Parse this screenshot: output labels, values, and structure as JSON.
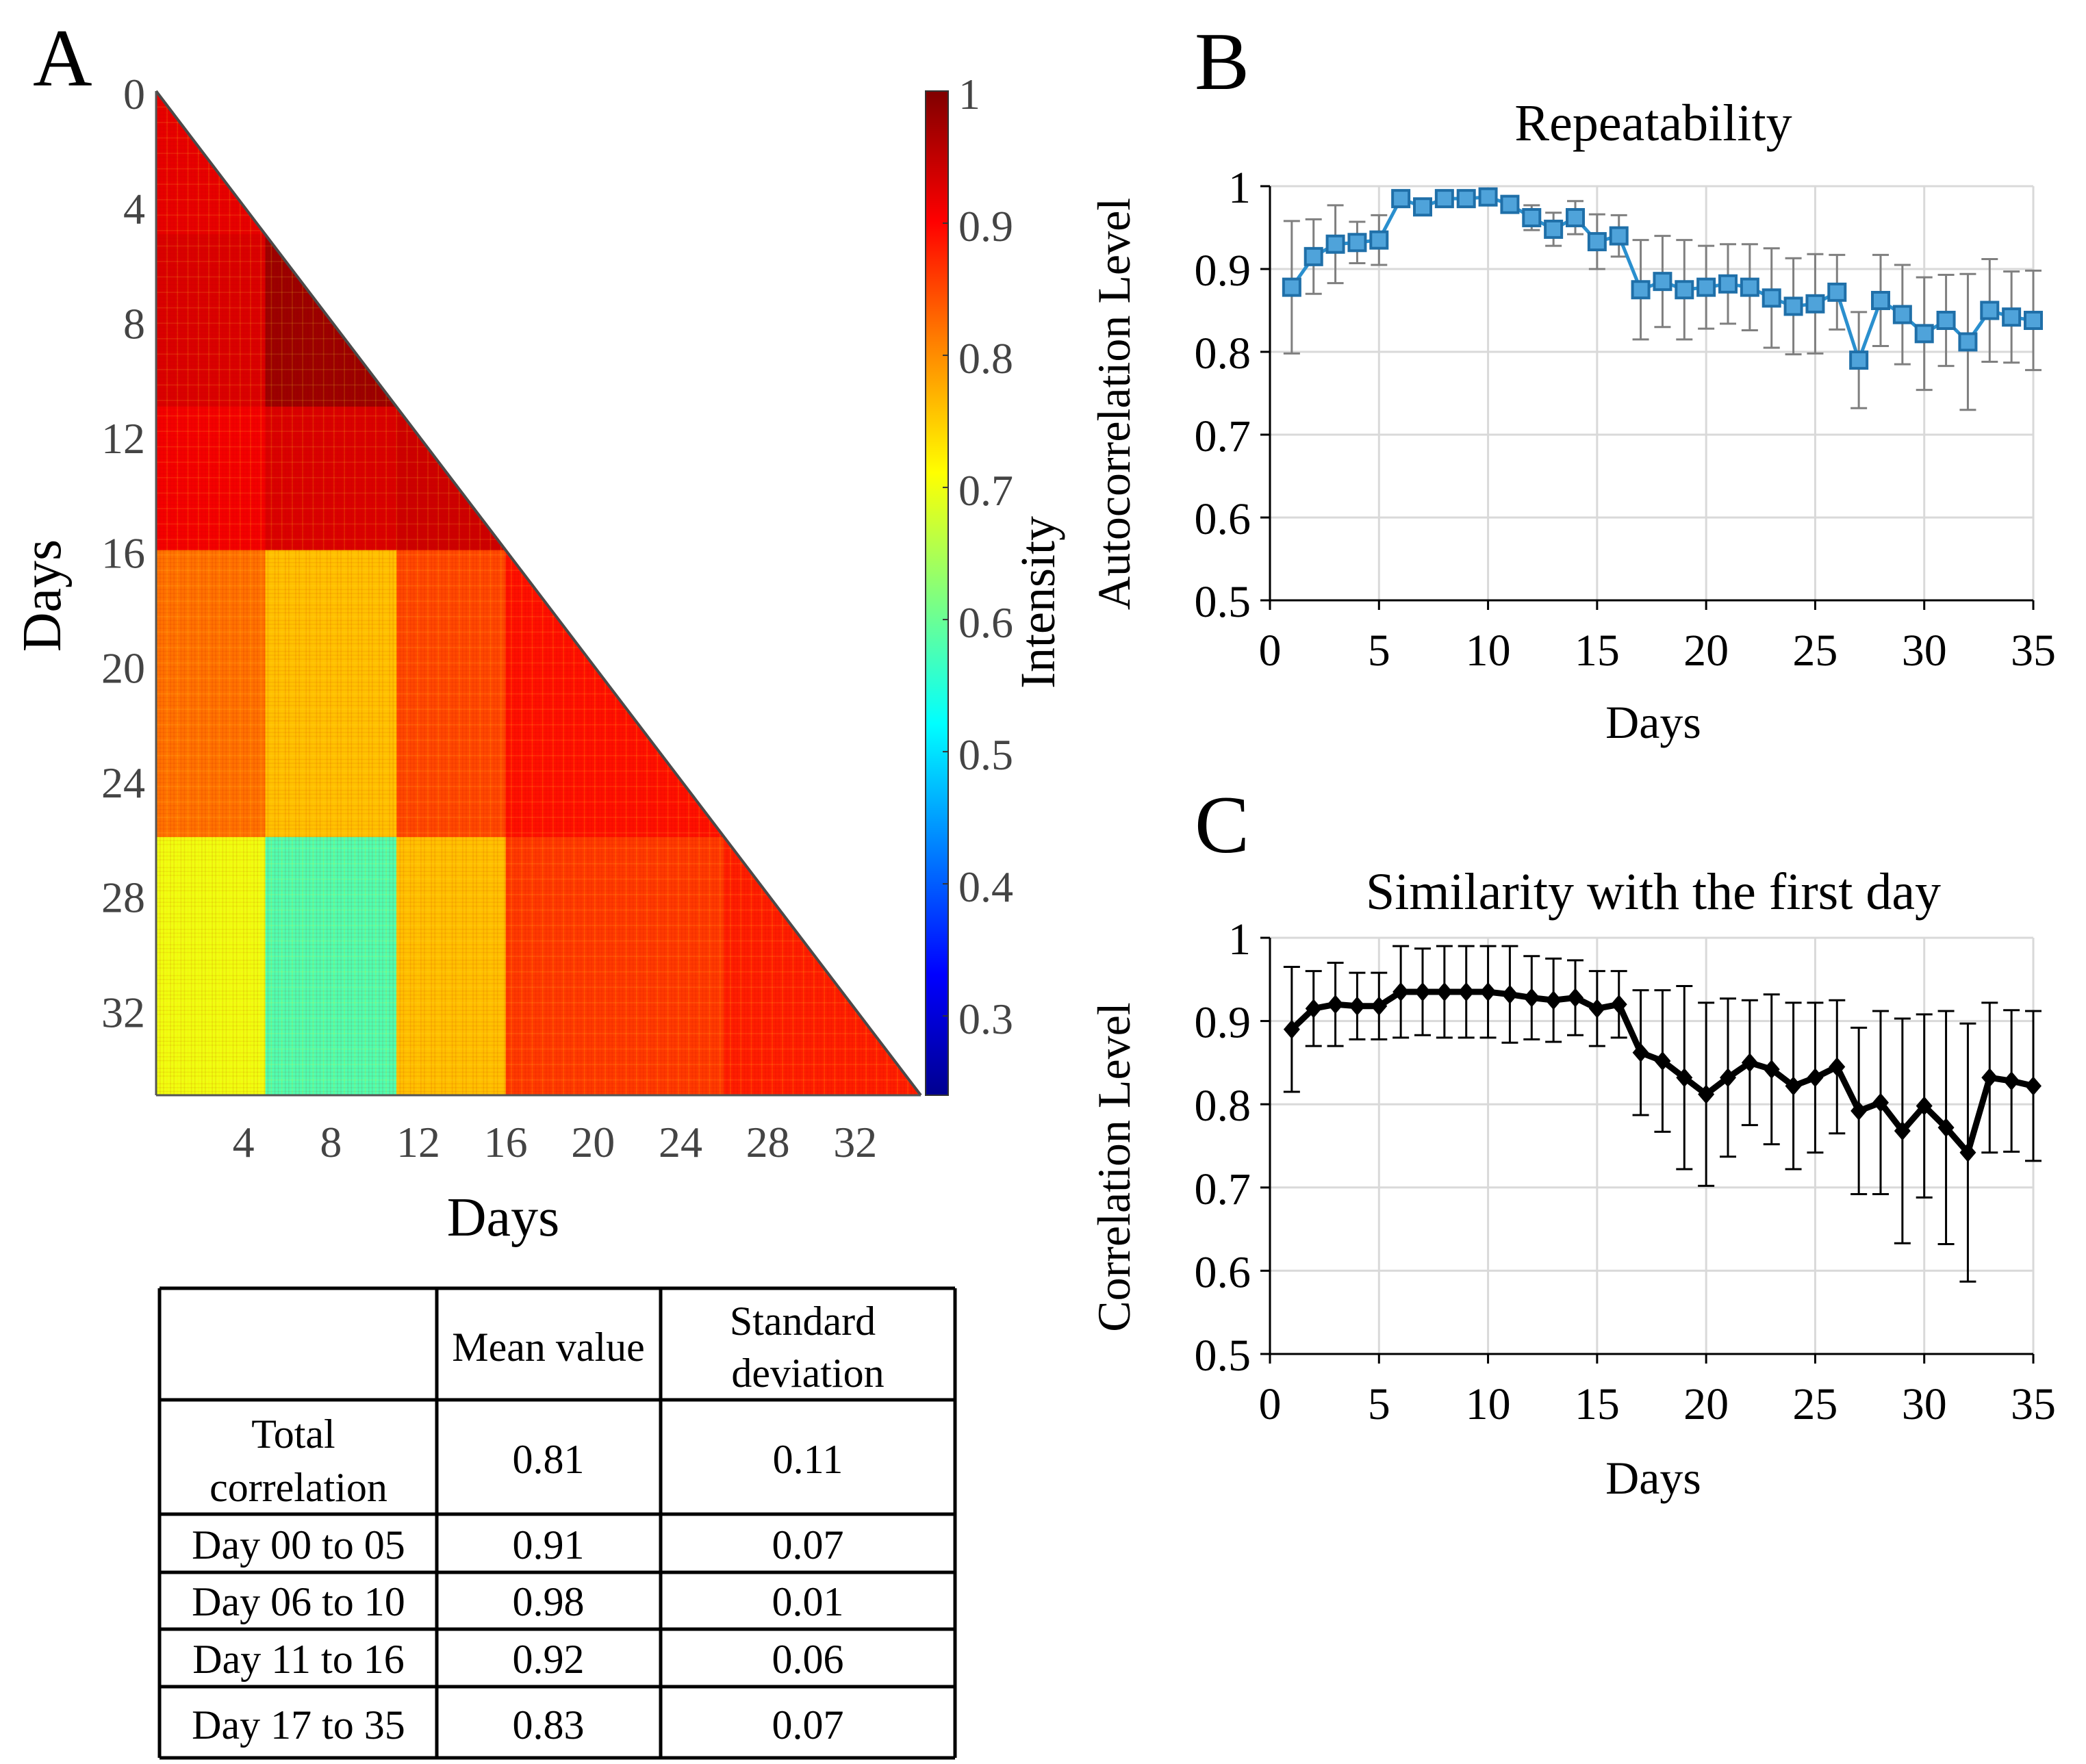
{
  "panels": {
    "A": {
      "letter": "A"
    },
    "B": {
      "letter": "B"
    },
    "C": {
      "letter": "C"
    }
  },
  "chart_data": [
    {
      "id": "A",
      "type": "heatmap",
      "title": "",
      "xlabel": "Days",
      "ylabel": "Days",
      "xticks": [
        "4",
        "8",
        "12",
        "16",
        "20",
        "24",
        "28",
        "32"
      ],
      "yticks": [
        "0",
        "4",
        "8",
        "12",
        "16",
        "20",
        "24",
        "28",
        "32"
      ],
      "xlim": [
        0,
        35
      ],
      "ylim": [
        0,
        35
      ],
      "shape": "lower-triangle",
      "colorbar": {
        "label": "Intensity",
        "ticks": [
          "1",
          "0.9",
          "0.8",
          "0.7",
          "0.6",
          "0.5",
          "0.4",
          "0.3"
        ],
        "range": [
          0.24,
          1.0
        ],
        "colormap": [
          "#00008f",
          "#0000ff",
          "#00ffff",
          "#ffff00",
          "#ff8000",
          "#ff0000",
          "#800000"
        ]
      },
      "blocks": [
        {
          "rows": [
            0,
            5
          ],
          "cols": [
            0,
            5
          ],
          "value": 0.92
        },
        {
          "rows": [
            5,
            11
          ],
          "cols": [
            0,
            5
          ],
          "value": 0.93
        },
        {
          "rows": [
            5,
            11
          ],
          "cols": [
            5,
            11
          ],
          "value": 0.98
        },
        {
          "rows": [
            11,
            16
          ],
          "cols": [
            0,
            5
          ],
          "value": 0.91
        },
        {
          "rows": [
            11,
            16
          ],
          "cols": [
            5,
            11
          ],
          "value": 0.93
        },
        {
          "rows": [
            11,
            16
          ],
          "cols": [
            11,
            16
          ],
          "value": 0.94
        },
        {
          "rows": [
            16,
            26
          ],
          "cols": [
            0,
            5
          ],
          "value": 0.82
        },
        {
          "rows": [
            16,
            26
          ],
          "cols": [
            5,
            11
          ],
          "value": 0.76
        },
        {
          "rows": [
            16,
            26
          ],
          "cols": [
            11,
            16
          ],
          "value": 0.85
        },
        {
          "rows": [
            16,
            26
          ],
          "cols": [
            16,
            26
          ],
          "value": 0.89
        },
        {
          "rows": [
            26,
            35
          ],
          "cols": [
            0,
            5
          ],
          "value": 0.7
        },
        {
          "rows": [
            26,
            35
          ],
          "cols": [
            5,
            11
          ],
          "value": 0.58
        },
        {
          "rows": [
            26,
            35
          ],
          "cols": [
            11,
            16
          ],
          "value": 0.76
        },
        {
          "rows": [
            26,
            35
          ],
          "cols": [
            16,
            26
          ],
          "value": 0.86
        },
        {
          "rows": [
            26,
            35
          ],
          "cols": [
            26,
            35
          ],
          "value": 0.88
        }
      ]
    },
    {
      "id": "B",
      "type": "line",
      "title": "Repeatability",
      "xlabel": "Days",
      "ylabel": "Autocorrelation Level",
      "xlim": [
        0,
        35
      ],
      "ylim": [
        0.5,
        1
      ],
      "xticks": [
        "0",
        "5",
        "10",
        "15",
        "20",
        "25",
        "30",
        "35"
      ],
      "yticks": [
        "0.5",
        "0.6",
        "0.7",
        "0.8",
        "0.9",
        "1"
      ],
      "grid": true,
      "color": "#2a8fce",
      "marker": "square",
      "x": [
        1,
        2,
        3,
        4,
        5,
        6,
        7,
        8,
        9,
        10,
        11,
        12,
        13,
        14,
        15,
        16,
        17,
        18,
        19,
        20,
        21,
        22,
        23,
        24,
        25,
        26,
        27,
        28,
        29,
        30,
        31,
        32,
        33,
        34,
        35
      ],
      "y": [
        0.878,
        0.915,
        0.93,
        0.932,
        0.935,
        0.985,
        0.975,
        0.985,
        0.985,
        0.987,
        0.978,
        0.962,
        0.948,
        0.962,
        0.933,
        0.94,
        0.875,
        0.885,
        0.875,
        0.878,
        0.882,
        0.878,
        0.865,
        0.855,
        0.858,
        0.872,
        0.79,
        0.862,
        0.845,
        0.822,
        0.838,
        0.812,
        0.85,
        0.842,
        0.838
      ],
      "yerr": [
        0.08,
        0.045,
        0.047,
        0.025,
        0.03,
        0.005,
        0.008,
        0.005,
        0.005,
        0.005,
        0.008,
        0.015,
        0.02,
        0.02,
        0.033,
        0.025,
        0.06,
        0.055,
        0.06,
        0.05,
        0.048,
        0.052,
        0.06,
        0.058,
        0.06,
        0.045,
        0.058,
        0.055,
        0.06,
        0.068,
        0.055,
        0.082,
        0.062,
        0.055,
        0.06
      ]
    },
    {
      "id": "C",
      "type": "line",
      "title": "Similarity with the first day",
      "xlabel": "Days",
      "ylabel": "Correlation Level",
      "xlim": [
        0,
        35
      ],
      "ylim": [
        0.5,
        1
      ],
      "xticks": [
        "0",
        "5",
        "10",
        "15",
        "20",
        "25",
        "30",
        "35"
      ],
      "yticks": [
        "0.5",
        "0.6",
        "0.7",
        "0.8",
        "0.9",
        "1"
      ],
      "grid": true,
      "color": "#000000",
      "marker": "diamond",
      "x": [
        1,
        2,
        3,
        4,
        5,
        6,
        7,
        8,
        9,
        10,
        11,
        12,
        13,
        14,
        15,
        16,
        17,
        18,
        19,
        20,
        21,
        22,
        23,
        24,
        25,
        26,
        27,
        28,
        29,
        30,
        31,
        32,
        33,
        34,
        35
      ],
      "y": [
        0.89,
        0.915,
        0.92,
        0.918,
        0.918,
        0.935,
        0.935,
        0.935,
        0.935,
        0.935,
        0.932,
        0.928,
        0.925,
        0.928,
        0.915,
        0.92,
        0.862,
        0.852,
        0.832,
        0.812,
        0.832,
        0.85,
        0.842,
        0.822,
        0.832,
        0.845,
        0.792,
        0.802,
        0.768,
        0.798,
        0.772,
        0.742,
        0.832,
        0.828,
        0.822
      ],
      "yerr": [
        0.075,
        0.045,
        0.05,
        0.04,
        0.04,
        0.055,
        0.052,
        0.055,
        0.055,
        0.055,
        0.058,
        0.05,
        0.05,
        0.045,
        0.045,
        0.04,
        0.075,
        0.085,
        0.11,
        0.11,
        0.095,
        0.075,
        0.09,
        0.1,
        0.09,
        0.08,
        0.1,
        0.11,
        0.135,
        0.11,
        0.14,
        0.155,
        0.09,
        0.085,
        0.09
      ]
    },
    {
      "id": "table",
      "type": "table",
      "columns": [
        "",
        "Mean value",
        "Standard deviation"
      ],
      "rows": [
        [
          "Total correlation",
          "0.81",
          "0.11"
        ],
        [
          "Day 00 to 05",
          "0.91",
          "0.07"
        ],
        [
          "Day 06 to 10",
          "0.98",
          "0.01"
        ],
        [
          "Day 11 to 16",
          "0.92",
          "0.06"
        ],
        [
          "Day 17 to 35",
          "0.83",
          "0.07"
        ]
      ]
    }
  ]
}
